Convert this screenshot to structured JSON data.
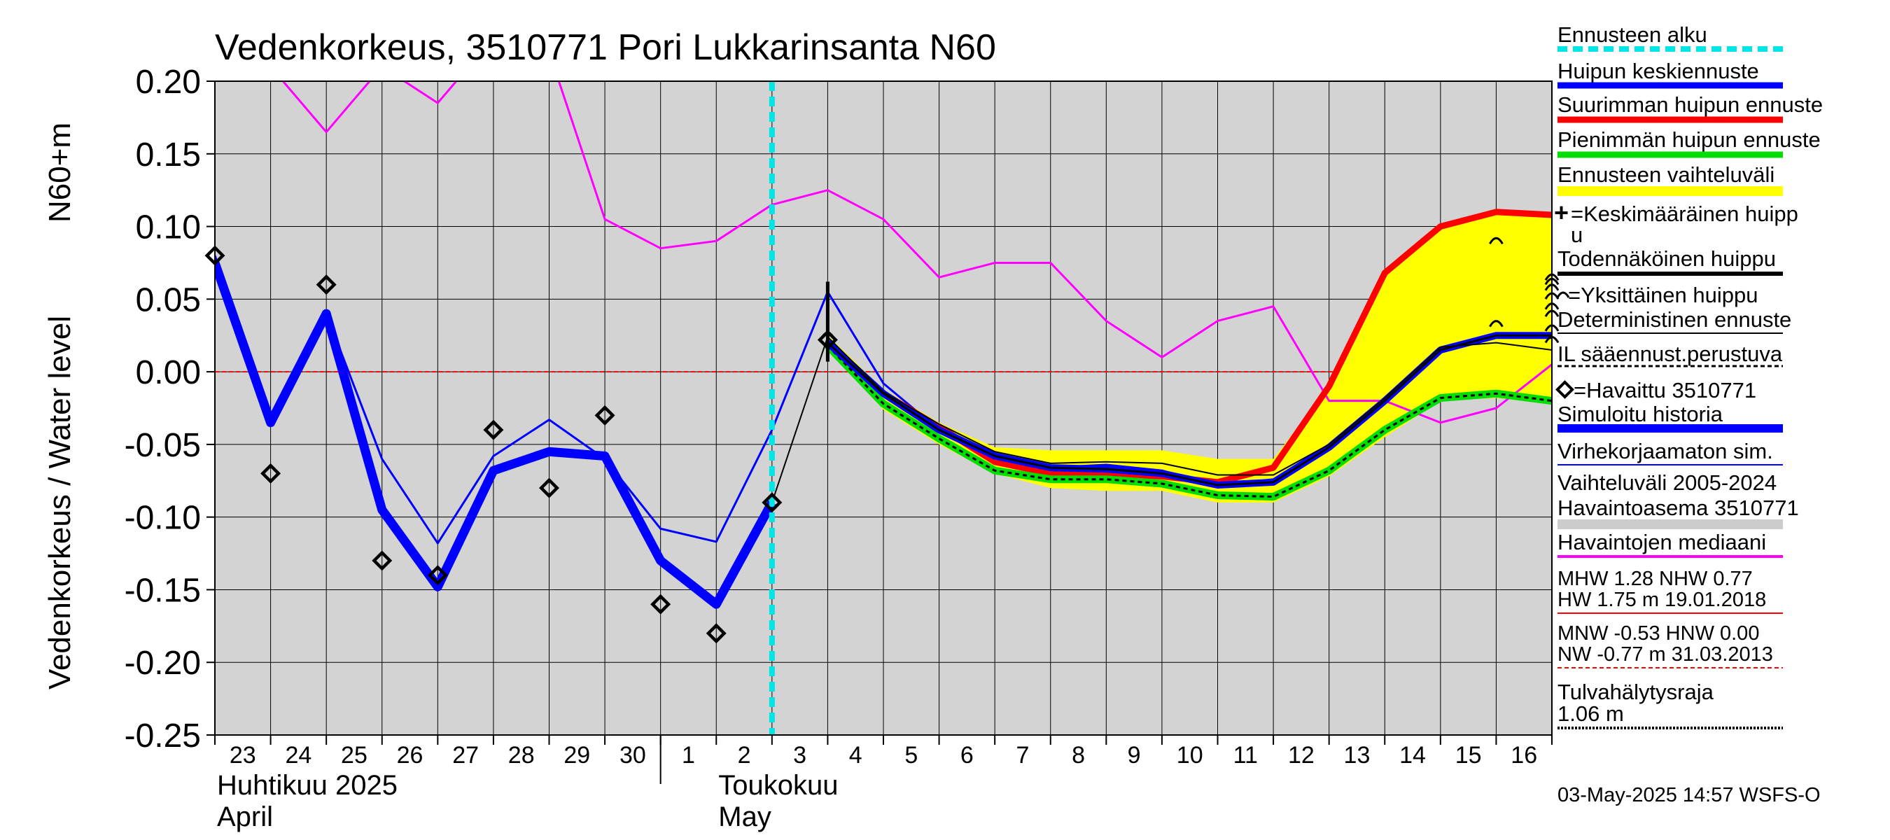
{
  "chart_data": {
    "type": "line",
    "title": "Vedenkorkeus, 3510771 Pori Lukkarinsanta N60",
    "ylabel_top": "N60+m",
    "ylabel": "Vedenkorkeus / Water level",
    "ylim": [
      -0.25,
      0.2
    ],
    "yticks": [
      0.2,
      0.15,
      0.1,
      0.05,
      0.0,
      -0.05,
      -0.1,
      -0.15,
      -0.2,
      -0.25
    ],
    "ytick_labels": [
      "0.20",
      "0.15",
      "0.10",
      "0.05",
      "0.00",
      "-0.05",
      "-0.10",
      "-0.15",
      "-0.20",
      "-0.25"
    ],
    "xlim": [
      0,
      24
    ],
    "day_labels": [
      "23",
      "24",
      "25",
      "26",
      "27",
      "28",
      "29",
      "30",
      "1",
      "2",
      "3",
      "4",
      "5",
      "6",
      "7",
      "8",
      "9",
      "10",
      "11",
      "12",
      "13",
      "14",
      "15",
      "16"
    ],
    "month_labels": [
      {
        "fi": "Huhtikuu  2025",
        "en": "April",
        "x": 0
      },
      {
        "fi": "Toukokuu",
        "en": "May",
        "x": 9
      }
    ],
    "month_separator_x": 8,
    "forecast_start_x": 10,
    "zero_line": 0.0,
    "timestamp": "03-May-2025 14:57 WSFS-O",
    "series": [
      {
        "name": "Havaintojen mediaani",
        "color": "#ff00ff",
        "x": [
          0,
          1,
          2,
          3,
          4,
          5,
          6,
          7,
          8,
          9,
          10,
          11,
          12,
          13,
          14,
          15,
          16,
          17,
          18,
          19,
          20,
          21,
          22,
          23,
          24
        ],
        "y": [
          0.26,
          0.21,
          0.165,
          0.21,
          0.185,
          0.23,
          0.22,
          0.105,
          0.085,
          0.09,
          0.115,
          0.125,
          0.105,
          0.065,
          0.075,
          0.075,
          0.035,
          0.01,
          0.035,
          0.045,
          -0.02,
          -0.02,
          -0.035,
          -0.025,
          0.005
        ]
      },
      {
        "name": "Simuloitu historia",
        "color": "#0000ff",
        "x": [
          0,
          1,
          2,
          3,
          4,
          5,
          6,
          7,
          8,
          9,
          10
        ],
        "y": [
          0.075,
          -0.035,
          0.04,
          -0.095,
          -0.148,
          -0.068,
          -0.055,
          -0.058,
          -0.13,
          -0.16,
          -0.09
        ]
      },
      {
        "name": "Virhekorjaamaton sim.",
        "color": "#0000ff",
        "x": [
          0,
          1,
          2,
          3,
          4,
          5,
          6,
          7,
          8,
          9,
          10,
          11,
          12,
          13,
          14,
          15,
          16,
          17,
          18,
          19
        ],
        "y": [
          0.08,
          -0.03,
          0.04,
          -0.06,
          -0.118,
          -0.058,
          -0.033,
          -0.06,
          -0.108,
          -0.117,
          -0.04,
          0.055,
          -0.008,
          -0.04,
          -0.058,
          -0.066,
          -0.064,
          -0.068,
          -0.078,
          -0.074
        ]
      },
      {
        "name": "Huipun keskiennuste",
        "color": "#0000ff",
        "x": [
          11,
          12,
          13,
          14,
          15,
          16,
          17,
          18,
          19,
          20,
          21,
          22,
          23,
          24
        ],
        "y": [
          0.02,
          -0.015,
          -0.04,
          -0.058,
          -0.066,
          -0.067,
          -0.07,
          -0.078,
          -0.076,
          -0.052,
          -0.02,
          0.015,
          0.025,
          0.025
        ]
      },
      {
        "name": "Suurimman huipun ennuste",
        "color": "#ff0000",
        "x": [
          11,
          12,
          13,
          14,
          15,
          16,
          17,
          18,
          19,
          20,
          21,
          22,
          23,
          24
        ],
        "y": [
          0.02,
          -0.015,
          -0.038,
          -0.062,
          -0.07,
          -0.07,
          -0.072,
          -0.076,
          -0.066,
          -0.01,
          0.068,
          0.1,
          0.11,
          0.108
        ]
      },
      {
        "name": "Pienimmän huipun ennuste",
        "color": "#00dd00",
        "x": [
          11,
          12,
          13,
          14,
          15,
          16,
          17,
          18,
          19,
          20,
          21,
          22,
          23,
          24
        ],
        "y": [
          0.018,
          -0.022,
          -0.046,
          -0.068,
          -0.074,
          -0.074,
          -0.077,
          -0.085,
          -0.086,
          -0.068,
          -0.04,
          -0.018,
          -0.015,
          -0.02
        ]
      },
      {
        "name": "Deterministinen ennuste",
        "color": "#000000",
        "x": [
          10,
          11,
          12,
          13,
          14,
          15,
          16,
          17,
          18,
          19,
          20,
          21,
          22,
          23,
          24
        ],
        "y": [
          -0.09,
          0.024,
          -0.014,
          -0.036,
          -0.055,
          -0.063,
          -0.062,
          -0.063,
          -0.071,
          -0.071,
          -0.05,
          -0.018,
          0.017,
          0.02,
          0.015
        ]
      }
    ],
    "range_band": {
      "name": "Ennusteen vaihteluväli",
      "color": "#ffff00",
      "x": [
        11,
        12,
        13,
        14,
        15,
        16,
        17,
        18,
        19,
        20,
        21,
        22,
        23,
        24
      ],
      "upper": [
        0.025,
        -0.012,
        -0.035,
        -0.052,
        -0.054,
        -0.054,
        -0.054,
        -0.06,
        -0.06,
        -0.01,
        0.068,
        0.1,
        0.11,
        0.108
      ],
      "lower": [
        0.015,
        -0.026,
        -0.05,
        -0.07,
        -0.08,
        -0.082,
        -0.082,
        -0.09,
        -0.09,
        -0.072,
        -0.045,
        -0.02,
        -0.018,
        -0.022
      ]
    },
    "observations": {
      "name": "Havaittu 3510771",
      "x": [
        0,
        2,
        3,
        4,
        5,
        6,
        7,
        1,
        8,
        9,
        10,
        11
      ],
      "y": [
        0.08,
        0.06,
        -0.13,
        -0.14,
        -0.04,
        -0.08,
        -0.03,
        -0.07,
        -0.16,
        -0.18,
        -0.09,
        0.022
      ]
    },
    "single_peaks": {
      "name": "Yksittäinen huippu",
      "x": [
        11,
        23,
        23,
        24,
        24,
        24,
        24,
        24,
        24,
        24,
        24
      ],
      "y": [
        0.025,
        0.09,
        0.033,
        0.065,
        0.062,
        0.058,
        0.052,
        0.045,
        0.04,
        0.03,
        0.022
      ]
    },
    "mean_peak": {
      "name": "Keskimääräinen huippu",
      "x": 11,
      "y": 0.022,
      "bar_top": 0.062
    },
    "legend": {
      "forecast_start": "Ennusteen alku",
      "peak_mean": "Huipun keskiennuste",
      "peak_max": "Suurimman huipun ennuste",
      "peak_min": "Pienimmän huipun ennuste",
      "range": "Ennusteen vaihteluväli",
      "mean_peak_l1": "=Keskimääräinen huipp",
      "mean_peak_l2": "u",
      "likely_peak": "Todennäköinen huippu",
      "single_peak": "=Yksittäinen huippu",
      "deterministic": "Deterministinen ennuste",
      "il_basis": "IL sääennust.perustuva",
      "observed": "=Havaittu 3510771",
      "sim_history": "Simuloitu historia",
      "uncorrected": "Virhekorjaamaton sim.",
      "variation_l1": "Vaihteluväli 2005-2024",
      "variation_l2": " Havaintoasema 3510771",
      "median": "Havaintojen mediaani",
      "mhw_l1": "MHW   1.28 NHW   0.77",
      "mhw_l2": "HW   1.75 m 19.01.2018",
      "mnw_l1": "MNW  -0.53 HNW   0.00",
      "mnw_l2": "NW  -0.77 m 31.03.2013",
      "flood_l1": "Tulvahälytysraja",
      "flood_l2": " 1.06 m"
    },
    "colors": {
      "plot_bg": "#d3d3d3",
      "grid": "#000000",
      "forecast_start": "#00e5e5",
      "median": "#ff00ff",
      "sim": "#0000ff",
      "max": "#ff0000",
      "min": "#00dd00",
      "band": "#ffff00",
      "zero": "#ff0000",
      "variation_swatch": "#cccccc"
    }
  }
}
